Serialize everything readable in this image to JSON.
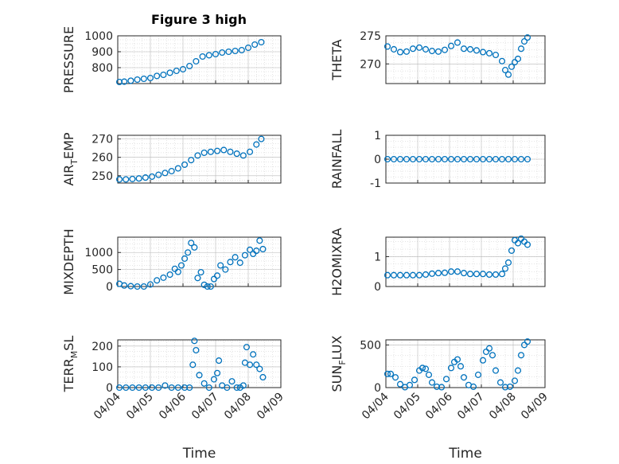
{
  "figure": {
    "title": "Figure 3 high",
    "xlabel": "Time",
    "marker_color": "#0072BD",
    "x_ticks": [
      "04/04",
      "04/05",
      "04/06",
      "04/07",
      "04/08",
      "04/09"
    ]
  },
  "chart_data": [
    {
      "type": "scatter",
      "name": "pressure",
      "ylabel": "PRESSURE",
      "ylabel_sub": "",
      "xlim": [
        4.0,
        9.0
      ],
      "ylim": [
        700,
        1000
      ],
      "yticks": [
        800,
        900,
        1000
      ],
      "grid": true,
      "x": [
        4.05,
        4.2,
        4.4,
        4.6,
        4.8,
        5.0,
        5.2,
        5.4,
        5.6,
        5.8,
        6.0,
        6.2,
        6.4,
        6.6,
        6.8,
        7.0,
        7.2,
        7.4,
        7.6,
        7.8,
        8.0,
        8.2,
        8.4
      ],
      "y": [
        710,
        712,
        718,
        725,
        730,
        735,
        748,
        755,
        768,
        780,
        790,
        810,
        840,
        870,
        878,
        885,
        895,
        900,
        905,
        910,
        925,
        945,
        960
      ]
    },
    {
      "type": "scatter",
      "name": "theta",
      "ylabel": "THETA",
      "ylabel_sub": "",
      "xlim": [
        4.0,
        9.0
      ],
      "ylim": [
        266.5,
        275
      ],
      "yticks": [
        270,
        275
      ],
      "grid": true,
      "x": [
        4.05,
        4.25,
        4.45,
        4.65,
        4.85,
        5.05,
        5.25,
        5.45,
        5.65,
        5.85,
        6.05,
        6.25,
        6.45,
        6.65,
        6.85,
        7.05,
        7.25,
        7.45,
        7.65,
        7.75,
        7.85,
        7.95,
        8.05,
        8.15,
        8.25,
        8.35,
        8.45
      ],
      "y": [
        273.1,
        272.6,
        272.1,
        272.2,
        272.7,
        272.9,
        272.6,
        272.3,
        272.2,
        272.5,
        273.2,
        273.8,
        272.7,
        272.6,
        272.4,
        272.1,
        271.9,
        271.6,
        270.5,
        268.9,
        268.1,
        269.5,
        270.3,
        270.9,
        272.7,
        274.0,
        274.7
      ]
    },
    {
      "type": "scatter",
      "name": "air_temp",
      "ylabel": "AIR",
      "ylabel_sub": "T",
      "ylabel_end": "EMP",
      "xlim": [
        4.0,
        9.0
      ],
      "ylim": [
        246,
        272
      ],
      "yticks": [
        250,
        260,
        270
      ],
      "grid": true,
      "x": [
        4.05,
        4.25,
        4.45,
        4.65,
        4.85,
        5.05,
        5.25,
        5.45,
        5.65,
        5.85,
        6.05,
        6.25,
        6.45,
        6.65,
        6.85,
        7.05,
        7.25,
        7.45,
        7.65,
        7.85,
        8.05,
        8.25,
        8.4
      ],
      "y": [
        248,
        248,
        248.2,
        248.5,
        249,
        249.5,
        250.5,
        251.5,
        252.5,
        254,
        256,
        258.5,
        261,
        262.5,
        263,
        263.5,
        264,
        263,
        262,
        261,
        263,
        267,
        270
      ]
    },
    {
      "type": "scatter",
      "name": "rainfall",
      "ylabel": "RAINFALL",
      "ylabel_sub": "",
      "xlim": [
        4.0,
        9.0
      ],
      "ylim": [
        -1,
        1
      ],
      "yticks": [
        -1,
        0,
        1
      ],
      "grid": true,
      "x": [
        4.05,
        4.25,
        4.45,
        4.65,
        4.85,
        5.05,
        5.25,
        5.45,
        5.65,
        5.85,
        6.05,
        6.25,
        6.45,
        6.65,
        6.85,
        7.05,
        7.25,
        7.45,
        7.65,
        7.85,
        8.05,
        8.25,
        8.45
      ],
      "y": [
        0,
        0,
        0,
        0,
        0,
        0,
        0,
        0,
        0,
        0,
        0,
        0,
        0,
        0,
        0,
        0,
        0,
        0,
        0,
        0,
        0,
        0,
        0
      ]
    },
    {
      "type": "scatter",
      "name": "mixdepth",
      "ylabel": "MIXDEPTH",
      "ylabel_sub": "",
      "xlim": [
        4.0,
        9.0
      ],
      "ylim": [
        0,
        1450
      ],
      "yticks": [
        0,
        500,
        1000
      ],
      "grid": true,
      "x": [
        4.05,
        4.2,
        4.4,
        4.6,
        4.8,
        5.0,
        5.2,
        5.4,
        5.6,
        5.75,
        5.85,
        5.95,
        6.05,
        6.15,
        6.25,
        6.35,
        6.45,
        6.55,
        6.65,
        6.75,
        6.85,
        6.95,
        7.05,
        7.15,
        7.3,
        7.45,
        7.6,
        7.75,
        7.9,
        8.05,
        8.15,
        8.25,
        8.35,
        8.45
      ],
      "y": [
        80,
        30,
        10,
        0,
        0,
        60,
        180,
        260,
        350,
        520,
        430,
        620,
        820,
        1000,
        1280,
        1150,
        250,
        420,
        50,
        0,
        0,
        220,
        320,
        620,
        500,
        720,
        860,
        700,
        920,
        1080,
        960,
        1050,
        1350,
        1100
      ]
    },
    {
      "type": "scatter",
      "name": "h2omixra",
      "ylabel": "H2OMIXRA",
      "ylabel_sub": "",
      "xlim": [
        4.0,
        9.0
      ],
      "ylim": [
        0,
        1.65
      ],
      "yticks": [
        0,
        1
      ],
      "grid": true,
      "x": [
        4.05,
        4.25,
        4.45,
        4.65,
        4.85,
        5.05,
        5.25,
        5.45,
        5.65,
        5.85,
        6.05,
        6.25,
        6.45,
        6.65,
        6.85,
        7.05,
        7.25,
        7.45,
        7.65,
        7.75,
        7.85,
        7.95,
        8.05,
        8.15,
        8.25,
        8.35,
        8.45
      ],
      "y": [
        0.38,
        0.38,
        0.38,
        0.38,
        0.38,
        0.38,
        0.4,
        0.43,
        0.45,
        0.46,
        0.5,
        0.5,
        0.45,
        0.42,
        0.42,
        0.42,
        0.4,
        0.4,
        0.42,
        0.6,
        0.8,
        1.2,
        1.55,
        1.45,
        1.6,
        1.5,
        1.4
      ]
    },
    {
      "type": "scatter",
      "name": "terr_msl",
      "ylabel": "TERR",
      "ylabel_sub": "M",
      "ylabel_end": "SL",
      "xlim": [
        4.0,
        9.0
      ],
      "ylim": [
        0,
        230
      ],
      "yticks": [
        0,
        100,
        200
      ],
      "grid": true,
      "x": [
        4.05,
        4.25,
        4.45,
        4.65,
        4.85,
        5.05,
        5.25,
        5.45,
        5.65,
        5.85,
        6.05,
        6.2,
        6.3,
        6.35,
        6.4,
        6.5,
        6.65,
        6.8,
        6.95,
        7.05,
        7.1,
        7.2,
        7.35,
        7.5,
        7.65,
        7.75,
        7.85,
        7.9,
        7.95,
        8.05,
        8.15,
        8.25,
        8.35,
        8.45
      ],
      "y": [
        0,
        0,
        0,
        0,
        0,
        0,
        0,
        10,
        0,
        0,
        0,
        0,
        110,
        225,
        180,
        60,
        20,
        0,
        40,
        70,
        130,
        10,
        0,
        30,
        0,
        0,
        10,
        120,
        195,
        110,
        160,
        110,
        90,
        50
      ]
    },
    {
      "type": "scatter",
      "name": "sun_flux",
      "ylabel": "SUN",
      "ylabel_sub": "F",
      "ylabel_end": "LUX",
      "xlim": [
        4.0,
        9.0
      ],
      "ylim": [
        0,
        560
      ],
      "yticks": [
        0,
        500
      ],
      "grid": true,
      "x": [
        4.05,
        4.15,
        4.3,
        4.45,
        4.6,
        4.75,
        4.9,
        5.05,
        5.15,
        5.25,
        5.35,
        5.45,
        5.6,
        5.75,
        5.9,
        6.05,
        6.15,
        6.25,
        6.35,
        6.45,
        6.6,
        6.75,
        6.9,
        7.05,
        7.15,
        7.25,
        7.35,
        7.45,
        7.6,
        7.75,
        7.9,
        8.05,
        8.15,
        8.25,
        8.35,
        8.45
      ],
      "y": [
        160,
        160,
        120,
        40,
        5,
        30,
        90,
        200,
        230,
        220,
        150,
        60,
        10,
        5,
        100,
        230,
        300,
        330,
        250,
        120,
        30,
        10,
        150,
        320,
        420,
        460,
        380,
        200,
        60,
        5,
        10,
        80,
        200,
        380,
        500,
        540
      ]
    }
  ]
}
